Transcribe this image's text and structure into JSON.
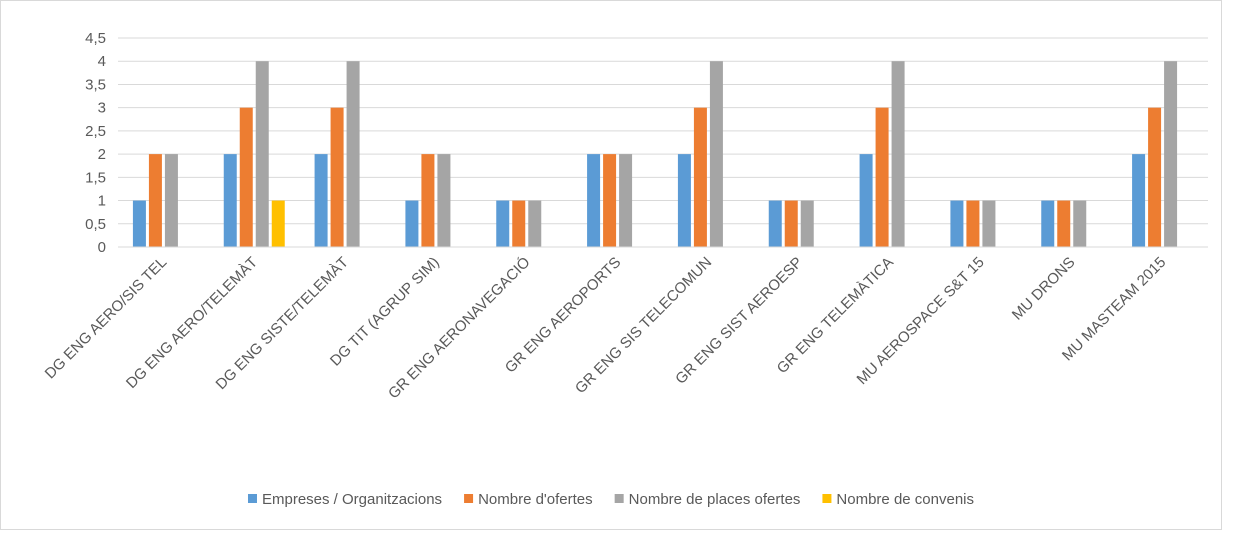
{
  "chart_data": {
    "type": "bar",
    "title": "",
    "xlabel": "",
    "ylabel": "",
    "ylim": [
      0,
      4.5
    ],
    "y_ticks": [
      "0",
      "0,5",
      "1",
      "1,5",
      "2",
      "2,5",
      "3",
      "3,5",
      "4",
      "4,5"
    ],
    "grid": true,
    "legend_position": "bottom",
    "categories": [
      "DG ENG AERO/SIS TEL",
      "DG ENG AERO/TELEMÀT",
      "DG ENG SISTE/TELEMÀT",
      "DG TIT (AGRUP SIM)",
      "GR ENG AERONAVEGACIÓ",
      "GR ENG AEROPORTS",
      "GR ENG SIS TELECOMUN",
      "GR ENG SIST AEROESP",
      "GR ENG TELEMÀTICA",
      "MU AEROSPACE S&T 15",
      "MU DRONS",
      "MU MASTEAM 2015"
    ],
    "series": [
      {
        "name": "Empreses / Organitzacions",
        "color": "#5b9bd5",
        "values": [
          1,
          2,
          2,
          1,
          1,
          2,
          2,
          1,
          2,
          1,
          1,
          2
        ]
      },
      {
        "name": "Nombre d'ofertes",
        "color": "#ed7d31",
        "values": [
          2,
          3,
          3,
          2,
          1,
          2,
          3,
          1,
          3,
          1,
          1,
          3
        ]
      },
      {
        "name": "Nombre de places ofertes",
        "color": "#a5a5a5",
        "values": [
          2,
          4,
          4,
          2,
          1,
          2,
          4,
          1,
          4,
          1,
          1,
          4
        ]
      },
      {
        "name": "Nombre de convenis",
        "color": "#ffc000",
        "values": [
          0,
          1,
          0,
          0,
          0,
          0,
          0,
          0,
          0,
          0,
          0,
          0
        ]
      }
    ]
  }
}
